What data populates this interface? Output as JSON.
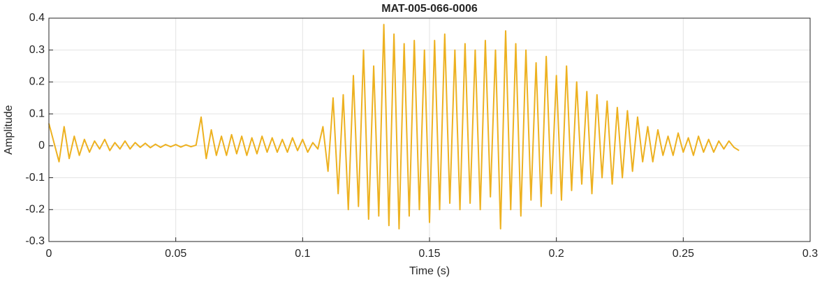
{
  "chart_data": {
    "type": "line",
    "title": "MAT-005-066-0006",
    "xlabel": "Time (s)",
    "ylabel": "Amplitude",
    "xlim": [
      0,
      0.3
    ],
    "xticks": [
      0,
      0.05,
      0.1,
      0.15,
      0.2,
      0.25,
      0.3
    ],
    "ylim": [
      -0.3,
      0.4
    ],
    "yticks": [
      -0.3,
      -0.2,
      -0.1,
      0,
      0.1,
      0.2,
      0.3,
      0.4
    ],
    "grid": true,
    "x": [
      0,
      0.002,
      0.004,
      0.006,
      0.008,
      0.01,
      0.012,
      0.014,
      0.016,
      0.018,
      0.02,
      0.022,
      0.024,
      0.026,
      0.028,
      0.03,
      0.032,
      0.034,
      0.036,
      0.038,
      0.04,
      0.042,
      0.044,
      0.046,
      0.048,
      0.05,
      0.052,
      0.054,
      0.056,
      0.058,
      0.06,
      0.062,
      0.064,
      0.066,
      0.068,
      0.07,
      0.072,
      0.074,
      0.076,
      0.078,
      0.08,
      0.082,
      0.084,
      0.086,
      0.088,
      0.09,
      0.092,
      0.094,
      0.096,
      0.098,
      0.1,
      0.102,
      0.104,
      0.106,
      0.108,
      0.11,
      0.112,
      0.114,
      0.116,
      0.118,
      0.12,
      0.122,
      0.124,
      0.126,
      0.128,
      0.13,
      0.132,
      0.134,
      0.136,
      0.138,
      0.14,
      0.142,
      0.144,
      0.146,
      0.148,
      0.15,
      0.152,
      0.154,
      0.156,
      0.158,
      0.16,
      0.162,
      0.164,
      0.166,
      0.168,
      0.17,
      0.172,
      0.174,
      0.176,
      0.178,
      0.18,
      0.182,
      0.184,
      0.186,
      0.188,
      0.19,
      0.192,
      0.194,
      0.196,
      0.198,
      0.2,
      0.202,
      0.204,
      0.206,
      0.208,
      0.21,
      0.212,
      0.214,
      0.216,
      0.218,
      0.22,
      0.222,
      0.224,
      0.226,
      0.228,
      0.23,
      0.232,
      0.234,
      0.236,
      0.238,
      0.24,
      0.242,
      0.244,
      0.246,
      0.248,
      0.25,
      0.252,
      0.254,
      0.256,
      0.258,
      0.26,
      0.262,
      0.264,
      0.266,
      0.268,
      0.27,
      0.272
    ],
    "series": [
      {
        "name": "Amplitude",
        "color": "#EDB120",
        "values": [
          0.07,
          0.01,
          -0.05,
          0.06,
          -0.04,
          0.03,
          -0.03,
          0.02,
          -0.02,
          0.015,
          -0.01,
          0.02,
          -0.015,
          0.01,
          -0.01,
          0.015,
          -0.01,
          0.01,
          -0.005,
          0.008,
          -0.006,
          0.005,
          -0.005,
          0.004,
          -0.003,
          0.004,
          -0.004,
          0.003,
          -0.003,
          0.002,
          0.09,
          -0.04,
          0.05,
          -0.03,
          0.03,
          -0.03,
          0.035,
          -0.025,
          0.03,
          -0.03,
          0.025,
          -0.025,
          0.03,
          -0.02,
          0.025,
          -0.02,
          0.02,
          -0.02,
          0.025,
          -0.015,
          0.02,
          -0.02,
          0.01,
          -0.01,
          0.06,
          -0.08,
          0.15,
          -0.15,
          0.16,
          -0.2,
          0.22,
          -0.19,
          0.3,
          -0.23,
          0.25,
          -0.22,
          0.38,
          -0.25,
          0.35,
          -0.26,
          0.32,
          -0.22,
          0.33,
          -0.2,
          0.3,
          -0.24,
          0.33,
          -0.2,
          0.35,
          -0.18,
          0.3,
          -0.2,
          0.32,
          -0.18,
          0.3,
          -0.2,
          0.33,
          -0.16,
          0.3,
          -0.26,
          0.36,
          -0.2,
          0.32,
          -0.22,
          0.3,
          -0.17,
          0.26,
          -0.19,
          0.28,
          -0.15,
          0.22,
          -0.17,
          0.25,
          -0.14,
          0.2,
          -0.12,
          0.17,
          -0.15,
          0.16,
          -0.1,
          0.14,
          -0.12,
          0.12,
          -0.1,
          0.11,
          -0.08,
          0.09,
          -0.05,
          0.06,
          -0.05,
          0.05,
          -0.03,
          0.03,
          -0.03,
          0.04,
          -0.02,
          0.025,
          -0.03,
          0.03,
          -0.02,
          0.02,
          -0.02,
          0.015,
          -0.01,
          0.015,
          -0.005,
          -0.015
        ]
      }
    ]
  }
}
